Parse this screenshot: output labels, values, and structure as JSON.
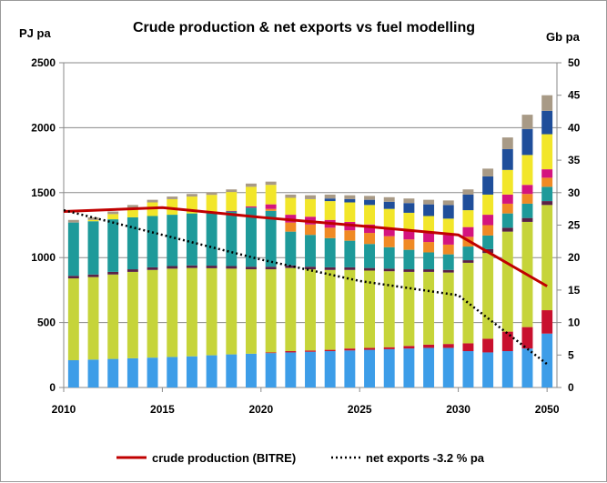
{
  "chart_data": {
    "type": "bar",
    "title": "Crude production & net exports vs fuel modelling",
    "ylabel": "PJ pa",
    "y2label": "Gb pa",
    "ylim": [
      0,
      2500
    ],
    "y2lim": [
      0,
      50
    ],
    "yticks": [
      "0",
      "500",
      "1000",
      "1500",
      "2000",
      "2500"
    ],
    "y2ticks": [
      "0",
      "5",
      "10",
      "15",
      "20",
      "25",
      "30",
      "35",
      "40",
      "45",
      "50"
    ],
    "categories": [
      2010,
      2011,
      2012,
      2013,
      2014,
      2015,
      2016,
      2017,
      2018,
      2019,
      2020,
      2021,
      2022,
      2023,
      2024,
      2025,
      2026,
      2027,
      2028,
      2029,
      2030,
      2032,
      2034,
      2036,
      2050
    ],
    "xtick_labels": [
      "2010",
      "2015",
      "2020",
      "2025",
      "2030",
      "2050"
    ],
    "xtick_index": [
      0,
      5,
      10,
      15,
      20,
      24
    ],
    "grid": true,
    "stack_colors": [
      "#3d9de8",
      "#c8102e",
      "#c6d43a",
      "#5a2246",
      "#1e9a9a",
      "#f08a24",
      "#d4147f",
      "#f2e62a",
      "#1f4e9a",
      "#a89a86"
    ],
    "stack_series": [
      [
        210,
        215,
        220,
        225,
        230,
        235,
        240,
        248,
        255,
        260,
        265,
        270,
        275,
        280,
        285,
        290,
        295,
        300,
        305,
        305,
        280,
        270,
        280,
        300,
        415
      ],
      [
        0,
        0,
        0,
        0,
        0,
        0,
        0,
        0,
        0,
        0,
        5,
        10,
        10,
        10,
        15,
        15,
        15,
        20,
        25,
        30,
        60,
        105,
        150,
        165,
        180
      ],
      [
        630,
        635,
        650,
        665,
        675,
        680,
        680,
        670,
        660,
        650,
        640,
        640,
        625,
        615,
        605,
        595,
        585,
        570,
        560,
        550,
        620,
        660,
        770,
        810,
        810
      ],
      [
        20,
        20,
        20,
        20,
        20,
        20,
        20,
        20,
        20,
        20,
        20,
        20,
        20,
        20,
        20,
        20,
        20,
        20,
        20,
        20,
        20,
        30,
        30,
        30,
        30
      ],
      [
        410,
        410,
        405,
        400,
        395,
        395,
        400,
        405,
        420,
        455,
        430,
        260,
        245,
        225,
        205,
        185,
        165,
        150,
        130,
        120,
        105,
        105,
        110,
        110,
        110
      ],
      [
        0,
        0,
        0,
        0,
        0,
        0,
        0,
        0,
        0,
        0,
        15,
        70,
        80,
        80,
        80,
        85,
        85,
        80,
        80,
        75,
        75,
        80,
        75,
        75,
        70
      ],
      [
        0,
        0,
        0,
        0,
        0,
        0,
        0,
        0,
        5,
        10,
        35,
        60,
        60,
        60,
        65,
        65,
        65,
        70,
        70,
        75,
        75,
        80,
        70,
        70,
        65
      ],
      [
        0,
        10,
        40,
        75,
        105,
        120,
        130,
        140,
        145,
        150,
        150,
        130,
        135,
        145,
        150,
        150,
        145,
        135,
        130,
        125,
        130,
        155,
        190,
        230,
        270
      ],
      [
        0,
        0,
        0,
        0,
        0,
        0,
        0,
        0,
        0,
        0,
        0,
        0,
        0,
        20,
        25,
        40,
        55,
        75,
        90,
        105,
        120,
        140,
        160,
        200,
        180
      ],
      [
        20,
        20,
        20,
        20,
        20,
        20,
        20,
        20,
        20,
        25,
        25,
        25,
        30,
        30,
        30,
        30,
        35,
        35,
        35,
        35,
        40,
        60,
        90,
        110,
        120
      ]
    ],
    "lines": [
      {
        "name": "crude production (BITRE)",
        "color": "#c00000",
        "style": "solid",
        "x": [
          2010,
          2015,
          2020,
          2025,
          2030,
          2050
        ],
        "y": [
          1355,
          1385,
          1310,
          1245,
          1175,
          780
        ]
      },
      {
        "name": "net exports -3.2 % pa",
        "color": "#000000",
        "style": "dotted",
        "x": [
          2010,
          2015,
          2020,
          2025,
          2030,
          2050
        ],
        "y": [
          1365,
          1175,
          985,
          820,
          710,
          180
        ]
      }
    ],
    "legend_position": "bottom"
  }
}
